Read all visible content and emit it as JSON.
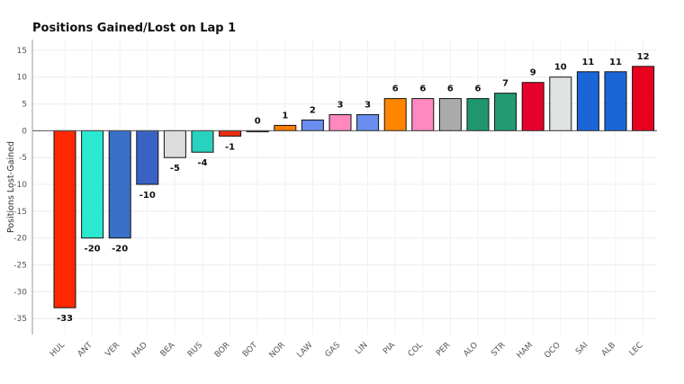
{
  "chart_data": {
    "type": "bar",
    "title": "Positions Gained/Lost on Lap 1",
    "xlabel": "",
    "ylabel": "Positions Lost-Gained",
    "ylim": [
      -38,
      17
    ],
    "yticks": [
      15,
      10,
      5,
      0,
      -5,
      -10,
      -15,
      -20,
      -25,
      -30,
      -35
    ],
    "grid": true,
    "categories": [
      "HUL",
      "ANT",
      "VER",
      "HAD",
      "BEA",
      "RUS",
      "BOR",
      "BOT",
      "NOR",
      "LAW",
      "GAS",
      "LIN",
      "PIA",
      "COL",
      "PER",
      "ALO",
      "STR",
      "HAM",
      "OCO",
      "SAI",
      "ALB",
      "LEC"
    ],
    "values": [
      -33,
      -20,
      -20,
      -10,
      -5,
      -4,
      -1,
      0,
      1,
      2,
      3,
      3,
      6,
      6,
      6,
      6,
      7,
      9,
      10,
      11,
      11,
      12
    ],
    "colors": [
      "#ff2800",
      "#2be8d0",
      "#3a70c8",
      "#3a62c4",
      "#dcdcdc",
      "#28d2be",
      "#ee2d12",
      "#dcdcdc",
      "#ff7d00",
      "#6a8ef0",
      "#ff88bf",
      "#6a8ef0",
      "#ff8500",
      "#ff88bf",
      "#aaaaaa",
      "#1f9670",
      "#239a72",
      "#e8002c",
      "#dfe2e2",
      "#1a66d8",
      "#1a66d8",
      "#e8001e"
    ],
    "data_labels": [
      "-33",
      "-20",
      "-20",
      "-10",
      "-5",
      "-4",
      "-1",
      "0",
      "1",
      "2",
      "3",
      "3",
      "6",
      "6",
      "6",
      "6",
      "7",
      "9",
      "10",
      "11",
      "11",
      "12"
    ]
  }
}
